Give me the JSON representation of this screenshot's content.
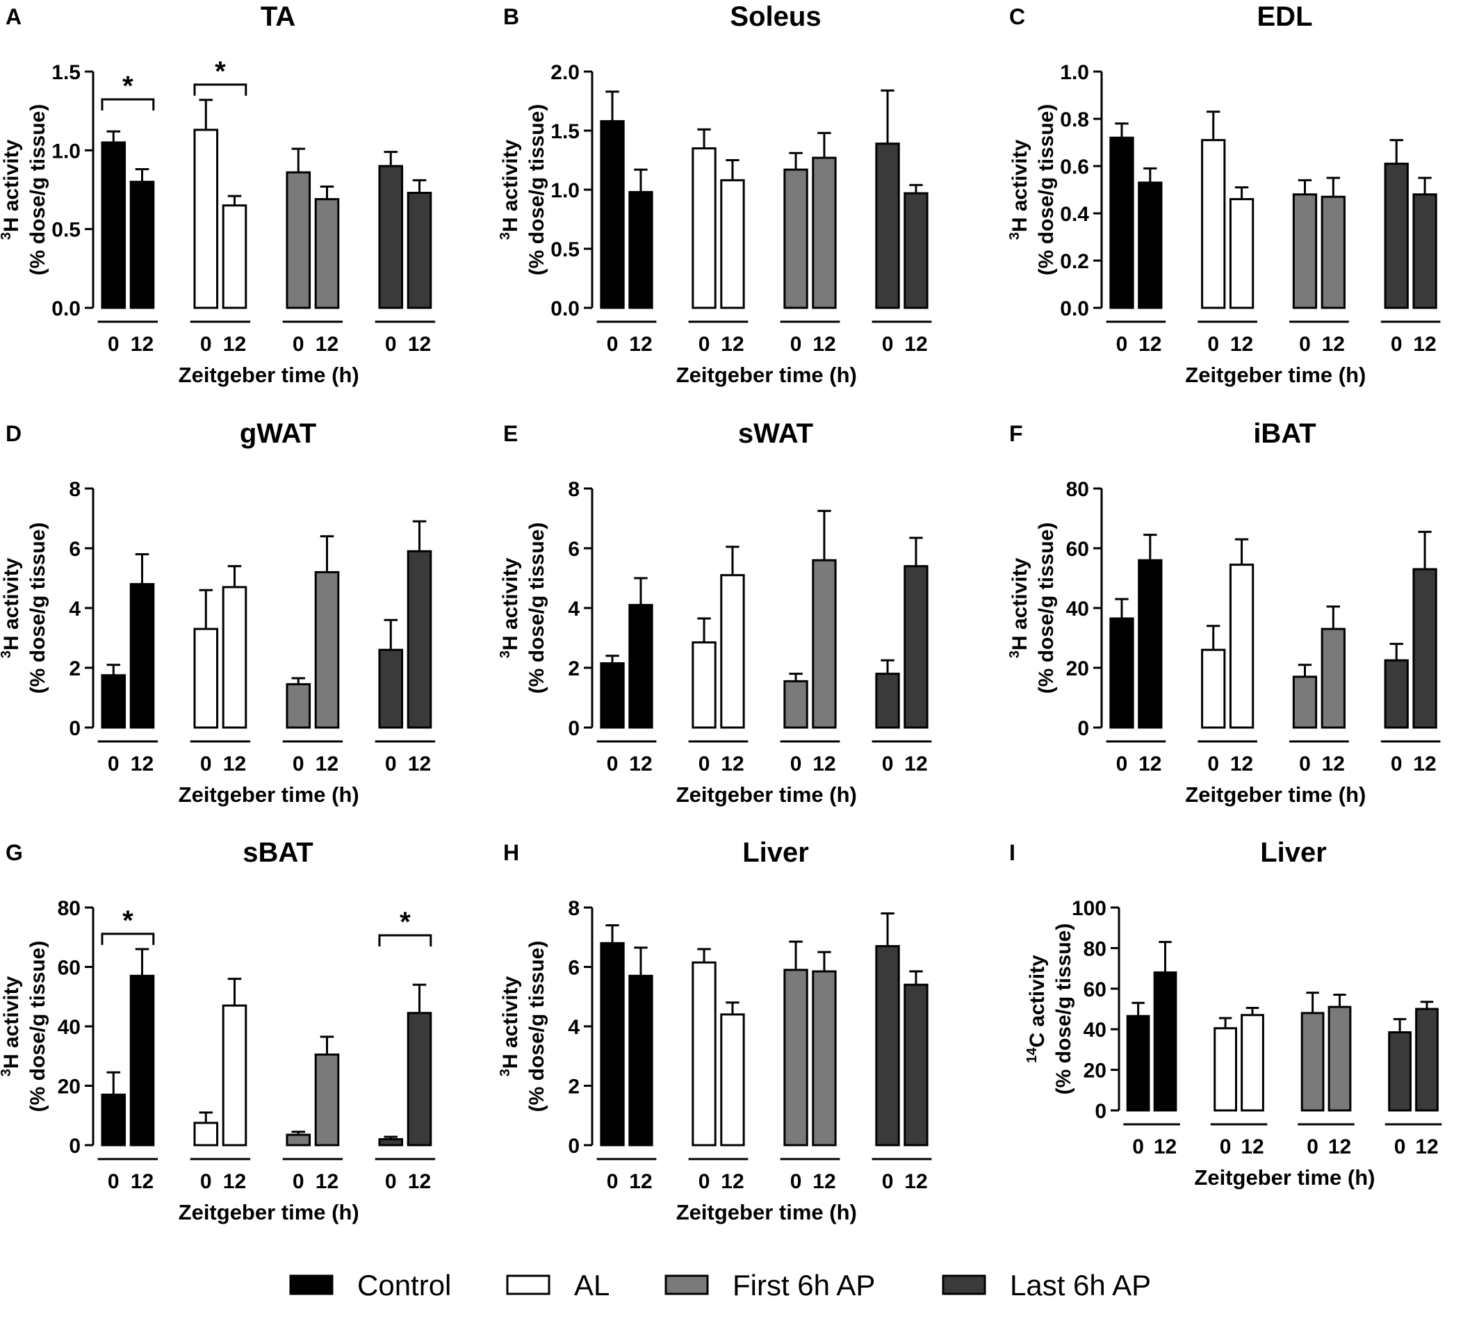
{
  "colors": {
    "Control": "#000000",
    "AL": "#ffffff",
    "First 6h AP": "#7a7a7a",
    "Last 6h AP": "#3a3a3a"
  },
  "legend": {
    "items": [
      {
        "name": "Control",
        "color": "#000000"
      },
      {
        "name": "AL",
        "color": "#ffffff"
      },
      {
        "name": "First 6h AP",
        "color": "#7a7a7a"
      },
      {
        "name": "Last 6h AP",
        "color": "#3a3a3a"
      }
    ],
    "placement": "bottom-center"
  },
  "chart_data": [
    {
      "letter": "A",
      "title": "TA",
      "type": "bar",
      "ylabel_top": "(% dose/g tissue)",
      "ylabel_isotope": "3",
      "ylabel_element": "H activity",
      "ylim": [
        0,
        1.5
      ],
      "yticks": [
        "0.0",
        "0.5",
        "1.0",
        "1.5"
      ],
      "categories": [
        "0",
        "12"
      ],
      "xlabel": "Zeitgeber time (h)",
      "series": [
        {
          "name": "Control",
          "values": [
            1.05,
            0.8
          ],
          "errors": [
            0.07,
            0.08
          ]
        },
        {
          "name": "AL",
          "values": [
            1.13,
            0.65
          ],
          "errors": [
            0.19,
            0.06
          ]
        },
        {
          "name": "First 6h AP",
          "values": [
            0.86,
            0.69
          ],
          "errors": [
            0.15,
            0.08
          ]
        },
        {
          "name": "Last 6h AP",
          "values": [
            0.9,
            0.73
          ],
          "errors": [
            0.09,
            0.08
          ]
        }
      ],
      "significance": [
        {
          "group": 0,
          "label": "*"
        },
        {
          "group": 1,
          "label": "*"
        }
      ]
    },
    {
      "letter": "B",
      "title": "Soleus",
      "type": "bar",
      "ylabel_top": "(% dose/g tissue)",
      "ylabel_isotope": "3",
      "ylabel_element": "H activity",
      "ylim": [
        0,
        2.0
      ],
      "yticks": [
        "0.0",
        "0.5",
        "1.0",
        "1.5",
        "2.0"
      ],
      "categories": [
        "0",
        "12"
      ],
      "xlabel": "Zeitgeber time (h)",
      "series": [
        {
          "name": "Control",
          "values": [
            1.58,
            0.98
          ],
          "errors": [
            0.25,
            0.19
          ]
        },
        {
          "name": "AL",
          "values": [
            1.35,
            1.08
          ],
          "errors": [
            0.16,
            0.17
          ]
        },
        {
          "name": "First 6h AP",
          "values": [
            1.17,
            1.27
          ],
          "errors": [
            0.14,
            0.21
          ]
        },
        {
          "name": "Last 6h AP",
          "values": [
            1.39,
            0.97
          ],
          "errors": [
            0.45,
            0.07
          ]
        }
      ],
      "significance": []
    },
    {
      "letter": "C",
      "title": "EDL",
      "type": "bar",
      "ylabel_top": "(% dose/g tissue)",
      "ylabel_isotope": "3",
      "ylabel_element": "H activity",
      "ylim": [
        0,
        1.0
      ],
      "yticks": [
        "0.0",
        "0.2",
        "0.4",
        "0.6",
        "0.8",
        "1.0"
      ],
      "categories": [
        "0",
        "12"
      ],
      "xlabel": "Zeitgeber time (h)",
      "series": [
        {
          "name": "Control",
          "values": [
            0.72,
            0.53
          ],
          "errors": [
            0.06,
            0.06
          ]
        },
        {
          "name": "AL",
          "values": [
            0.71,
            0.46
          ],
          "errors": [
            0.12,
            0.05
          ]
        },
        {
          "name": "First 6h AP",
          "values": [
            0.48,
            0.47
          ],
          "errors": [
            0.06,
            0.08
          ]
        },
        {
          "name": "Last 6h AP",
          "values": [
            0.61,
            0.48
          ],
          "errors": [
            0.1,
            0.07
          ]
        }
      ],
      "significance": []
    },
    {
      "letter": "D",
      "title": "gWAT",
      "type": "bar",
      "ylabel_top": "(% dose/g tissue)",
      "ylabel_isotope": "3",
      "ylabel_element": "H activity",
      "ylim": [
        0,
        8
      ],
      "yticks": [
        "0",
        "2",
        "4",
        "6",
        "8"
      ],
      "categories": [
        "0",
        "12"
      ],
      "xlabel": "Zeitgeber time (h)",
      "series": [
        {
          "name": "Control",
          "values": [
            1.75,
            4.8
          ],
          "errors": [
            0.35,
            1.0
          ]
        },
        {
          "name": "AL",
          "values": [
            3.3,
            4.7
          ],
          "errors": [
            1.3,
            0.7
          ]
        },
        {
          "name": "First 6h AP",
          "values": [
            1.45,
            5.2
          ],
          "errors": [
            0.2,
            1.2
          ]
        },
        {
          "name": "Last 6h AP",
          "values": [
            2.6,
            5.9
          ],
          "errors": [
            1.0,
            1.0
          ]
        }
      ],
      "significance": []
    },
    {
      "letter": "E",
      "title": "sWAT",
      "type": "bar",
      "ylabel_top": "(% dose/g tissue)",
      "ylabel_isotope": "3",
      "ylabel_element": "H activity",
      "ylim": [
        0,
        8
      ],
      "yticks": [
        "0",
        "2",
        "4",
        "6",
        "8"
      ],
      "categories": [
        "0",
        "12"
      ],
      "xlabel": "Zeitgeber time (h)",
      "series": [
        {
          "name": "Control",
          "values": [
            2.15,
            4.1
          ],
          "errors": [
            0.25,
            0.9
          ]
        },
        {
          "name": "AL",
          "values": [
            2.85,
            5.1
          ],
          "errors": [
            0.8,
            0.95
          ]
        },
        {
          "name": "First 6h AP",
          "values": [
            1.55,
            5.6
          ],
          "errors": [
            0.25,
            1.65
          ]
        },
        {
          "name": "Last 6h AP",
          "values": [
            1.8,
            5.4
          ],
          "errors": [
            0.45,
            0.95
          ]
        }
      ],
      "significance": []
    },
    {
      "letter": "F",
      "title": "iBAT",
      "type": "bar",
      "ylabel_top": "(% dose/g tissue)",
      "ylabel_isotope": "3",
      "ylabel_element": "H activity",
      "ylim": [
        0,
        80
      ],
      "yticks": [
        "0",
        "20",
        "40",
        "60",
        "80"
      ],
      "categories": [
        "0",
        "12"
      ],
      "xlabel": "Zeitgeber time (h)",
      "series": [
        {
          "name": "Control",
          "values": [
            36.5,
            56
          ],
          "errors": [
            6.5,
            8.5
          ]
        },
        {
          "name": "AL",
          "values": [
            26,
            54.5
          ],
          "errors": [
            8,
            8.5
          ]
        },
        {
          "name": "First 6h AP",
          "values": [
            17,
            33
          ],
          "errors": [
            4,
            7.5
          ]
        },
        {
          "name": "Last 6h AP",
          "values": [
            22.5,
            53
          ],
          "errors": [
            5.5,
            12.5
          ]
        }
      ],
      "significance": []
    },
    {
      "letter": "G",
      "title": "sBAT",
      "type": "bar",
      "ylabel_top": "(% dose/g tissue)",
      "ylabel_isotope": "3",
      "ylabel_element": "H activity",
      "ylim": [
        0,
        80
      ],
      "yticks": [
        "0",
        "20",
        "40",
        "60",
        "80"
      ],
      "categories": [
        "0",
        "12"
      ],
      "xlabel": "Zeitgeber time (h)",
      "series": [
        {
          "name": "Control",
          "values": [
            17,
            57
          ],
          "errors": [
            7.5,
            9
          ]
        },
        {
          "name": "AL",
          "values": [
            7.5,
            47
          ],
          "errors": [
            3.5,
            9
          ]
        },
        {
          "name": "First 6h AP",
          "values": [
            3.5,
            30.5
          ],
          "errors": [
            1,
            6
          ]
        },
        {
          "name": "Last 6h AP",
          "values": [
            2,
            44.5
          ],
          "errors": [
            0.8,
            9.5
          ]
        }
      ],
      "significance": [
        {
          "group": 0,
          "label": "*"
        },
        {
          "group": 3,
          "label": "*"
        }
      ]
    },
    {
      "letter": "H",
      "title": "Liver",
      "type": "bar",
      "ylabel_top": "(% dose/g tissue)",
      "ylabel_isotope": "3",
      "ylabel_element": "H activity",
      "ylim": [
        0,
        8
      ],
      "yticks": [
        "0",
        "2",
        "4",
        "6",
        "8"
      ],
      "categories": [
        "0",
        "12"
      ],
      "xlabel": "Zeitgeber time (h)",
      "series": [
        {
          "name": "Control",
          "values": [
            6.8,
            5.7
          ],
          "errors": [
            0.6,
            0.95
          ]
        },
        {
          "name": "AL",
          "values": [
            6.15,
            4.4
          ],
          "errors": [
            0.45,
            0.4
          ]
        },
        {
          "name": "First 6h AP",
          "values": [
            5.9,
            5.85
          ],
          "errors": [
            0.95,
            0.65
          ]
        },
        {
          "name": "Last 6h AP",
          "values": [
            6.7,
            5.4
          ],
          "errors": [
            1.1,
            0.45
          ]
        }
      ],
      "significance": []
    },
    {
      "letter": "I",
      "title": "Liver",
      "type": "bar",
      "ylabel_top": "(% dose/g tissue)",
      "ylabel_isotope": "14",
      "ylabel_element": "C activity",
      "ylim": [
        0,
        100
      ],
      "yticks": [
        "0",
        "20",
        "40",
        "60",
        "80",
        "100"
      ],
      "categories": [
        "0",
        "12"
      ],
      "xlabel": "Zeitgeber time (h)",
      "series": [
        {
          "name": "Control",
          "values": [
            46.5,
            68
          ],
          "errors": [
            6.5,
            15
          ]
        },
        {
          "name": "AL",
          "values": [
            40.5,
            47
          ],
          "errors": [
            5,
            3.5
          ]
        },
        {
          "name": "First 6h AP",
          "values": [
            48,
            51
          ],
          "errors": [
            10,
            6
          ]
        },
        {
          "name": "Last 6h AP",
          "values": [
            38.5,
            50
          ],
          "errors": [
            6.5,
            3.5
          ]
        }
      ],
      "significance": []
    }
  ]
}
